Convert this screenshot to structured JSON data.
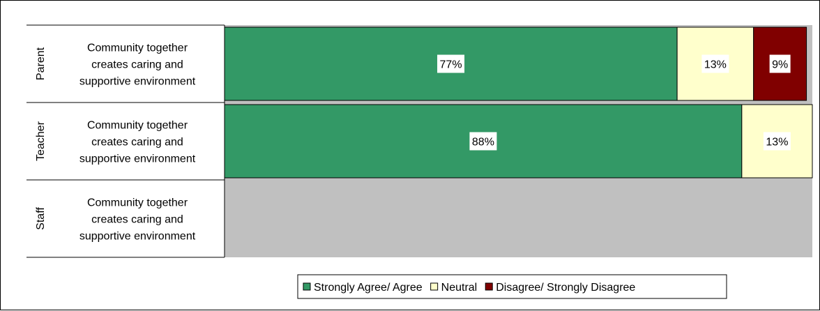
{
  "chart_data": {
    "type": "bar",
    "orientation": "horizontal",
    "stacked": true,
    "xlim": [
      0,
      100
    ],
    "grid": false,
    "legend_position": "bottom",
    "groups": [
      "Parent",
      "Teacher",
      "Staff"
    ],
    "categories": [
      "Community together creates caring and supportive environment",
      "Community together creates caring and supportive environment",
      "Community together creates caring and supportive environment"
    ],
    "category_lines": [
      "Community together",
      "creates caring and",
      "supportive environment"
    ],
    "series": [
      {
        "name": "Strongly Agree/ Agree",
        "color": "#339966",
        "values": [
          77,
          88,
          null
        ],
        "labels": [
          "77%",
          "88%",
          ""
        ]
      },
      {
        "name": "Neutral",
        "color": "#FFFFCC",
        "values": [
          13,
          13,
          null
        ],
        "labels": [
          "13%",
          "13%",
          ""
        ]
      },
      {
        "name": "Disagree/ Strongly Disagree",
        "color": "#800000",
        "values": [
          9,
          0,
          null
        ],
        "labels": [
          "9%",
          "",
          ""
        ]
      }
    ],
    "plot_background": "#C0C0C0"
  }
}
